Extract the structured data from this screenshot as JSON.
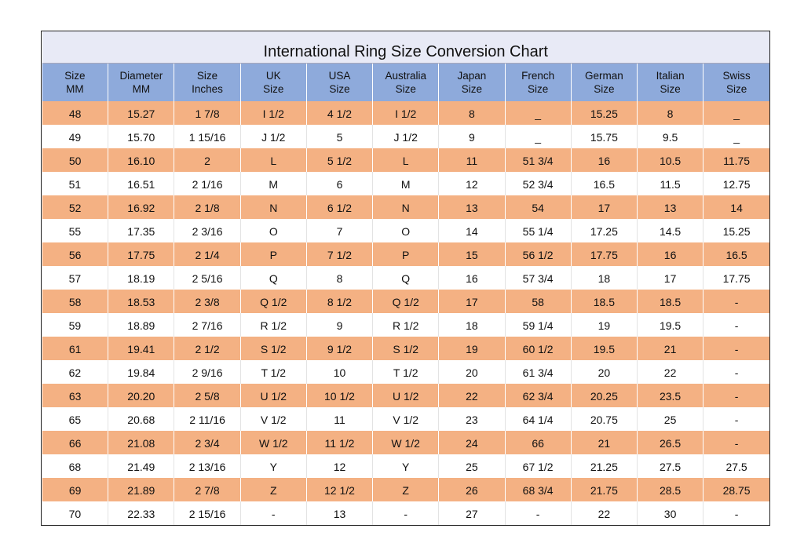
{
  "table": {
    "title": "International Ring Size Conversion Chart",
    "header": [
      [
        "Size",
        "MM"
      ],
      [
        "Diameter",
        "MM"
      ],
      [
        "Size",
        "Inches"
      ],
      [
        "UK",
        "Size"
      ],
      [
        "USA",
        "Size"
      ],
      [
        "Australia",
        "Size"
      ],
      [
        "Japan",
        "Size"
      ],
      [
        "French",
        "Size"
      ],
      [
        "German",
        "Size"
      ],
      [
        "Italian",
        "Size"
      ],
      [
        "Swiss",
        "Size"
      ]
    ],
    "rows": [
      [
        "48",
        "15.27",
        "1 7/8",
        "I 1/2",
        "4 1/2",
        "I 1/2",
        "8",
        "_",
        "15.25",
        "8",
        "_"
      ],
      [
        "49",
        "15.70",
        "1 15/16",
        "J 1/2",
        "5",
        "J 1/2",
        "9",
        "_",
        "15.75",
        "9.5",
        "_"
      ],
      [
        "50",
        "16.10",
        "2",
        "L",
        "5 1/2",
        "L",
        "11",
        "51 3/4",
        "16",
        "10.5",
        "11.75"
      ],
      [
        "51",
        "16.51",
        "2 1/16",
        "M",
        "6",
        "M",
        "12",
        "52 3/4",
        "16.5",
        "11.5",
        "12.75"
      ],
      [
        "52",
        "16.92",
        "2 1/8",
        "N",
        "6 1/2",
        "N",
        "13",
        "54",
        "17",
        "13",
        "14"
      ],
      [
        "55",
        "17.35",
        "2 3/16",
        "O",
        "7",
        "O",
        "14",
        "55 1/4",
        "17.25",
        "14.5",
        "15.25"
      ],
      [
        "56",
        "17.75",
        "2 1/4",
        "P",
        "7 1/2",
        "P",
        "15",
        "56 1/2",
        "17.75",
        "16",
        "16.5"
      ],
      [
        "57",
        "18.19",
        "2 5/16",
        "Q",
        "8",
        "Q",
        "16",
        "57 3/4",
        "18",
        "17",
        "17.75"
      ],
      [
        "58",
        "18.53",
        "2 3/8",
        "Q 1/2",
        "8 1/2",
        "Q 1/2",
        "17",
        "58",
        "18.5",
        "18.5",
        "-"
      ],
      [
        "59",
        "18.89",
        "2 7/16",
        "R 1/2",
        "9",
        "R 1/2",
        "18",
        "59 1/4",
        "19",
        "19.5",
        "-"
      ],
      [
        "61",
        "19.41",
        "2 1/2",
        "S 1/2",
        "9 1/2",
        "S 1/2",
        "19",
        "60 1/2",
        "19.5",
        "21",
        "-"
      ],
      [
        "62",
        "19.84",
        "2 9/16",
        "T 1/2",
        "10",
        "T 1/2",
        "20",
        "61 3/4",
        "20",
        "22",
        "-"
      ],
      [
        "63",
        "20.20",
        "2 5/8",
        "U 1/2",
        "10 1/2",
        "U 1/2",
        "22",
        "62 3/4",
        "20.25",
        "23.5",
        "-"
      ],
      [
        "65",
        "20.68",
        "2 11/16",
        "V 1/2",
        "11",
        "V 1/2",
        "23",
        "64 1/4",
        "20.75",
        "25",
        "-"
      ],
      [
        "66",
        "21.08",
        "2 3/4",
        "W 1/2",
        "11 1/2",
        "W 1/2",
        "24",
        "66",
        "21",
        "26.5",
        "-"
      ],
      [
        "68",
        "21.49",
        "2 13/16",
        "Y",
        "12",
        "Y",
        "25",
        "67 1/2",
        "21.25",
        "27.5",
        "27.5"
      ],
      [
        "69",
        "21.89",
        "2 7/8",
        "Z",
        "12 1/2",
        "Z",
        "26",
        "68 3/4",
        "21.75",
        "28.5",
        "28.75"
      ],
      [
        "70",
        "22.33",
        "2 15/16",
        "-",
        "13",
        "-",
        "27",
        "-",
        "22",
        "30",
        "-"
      ]
    ]
  }
}
